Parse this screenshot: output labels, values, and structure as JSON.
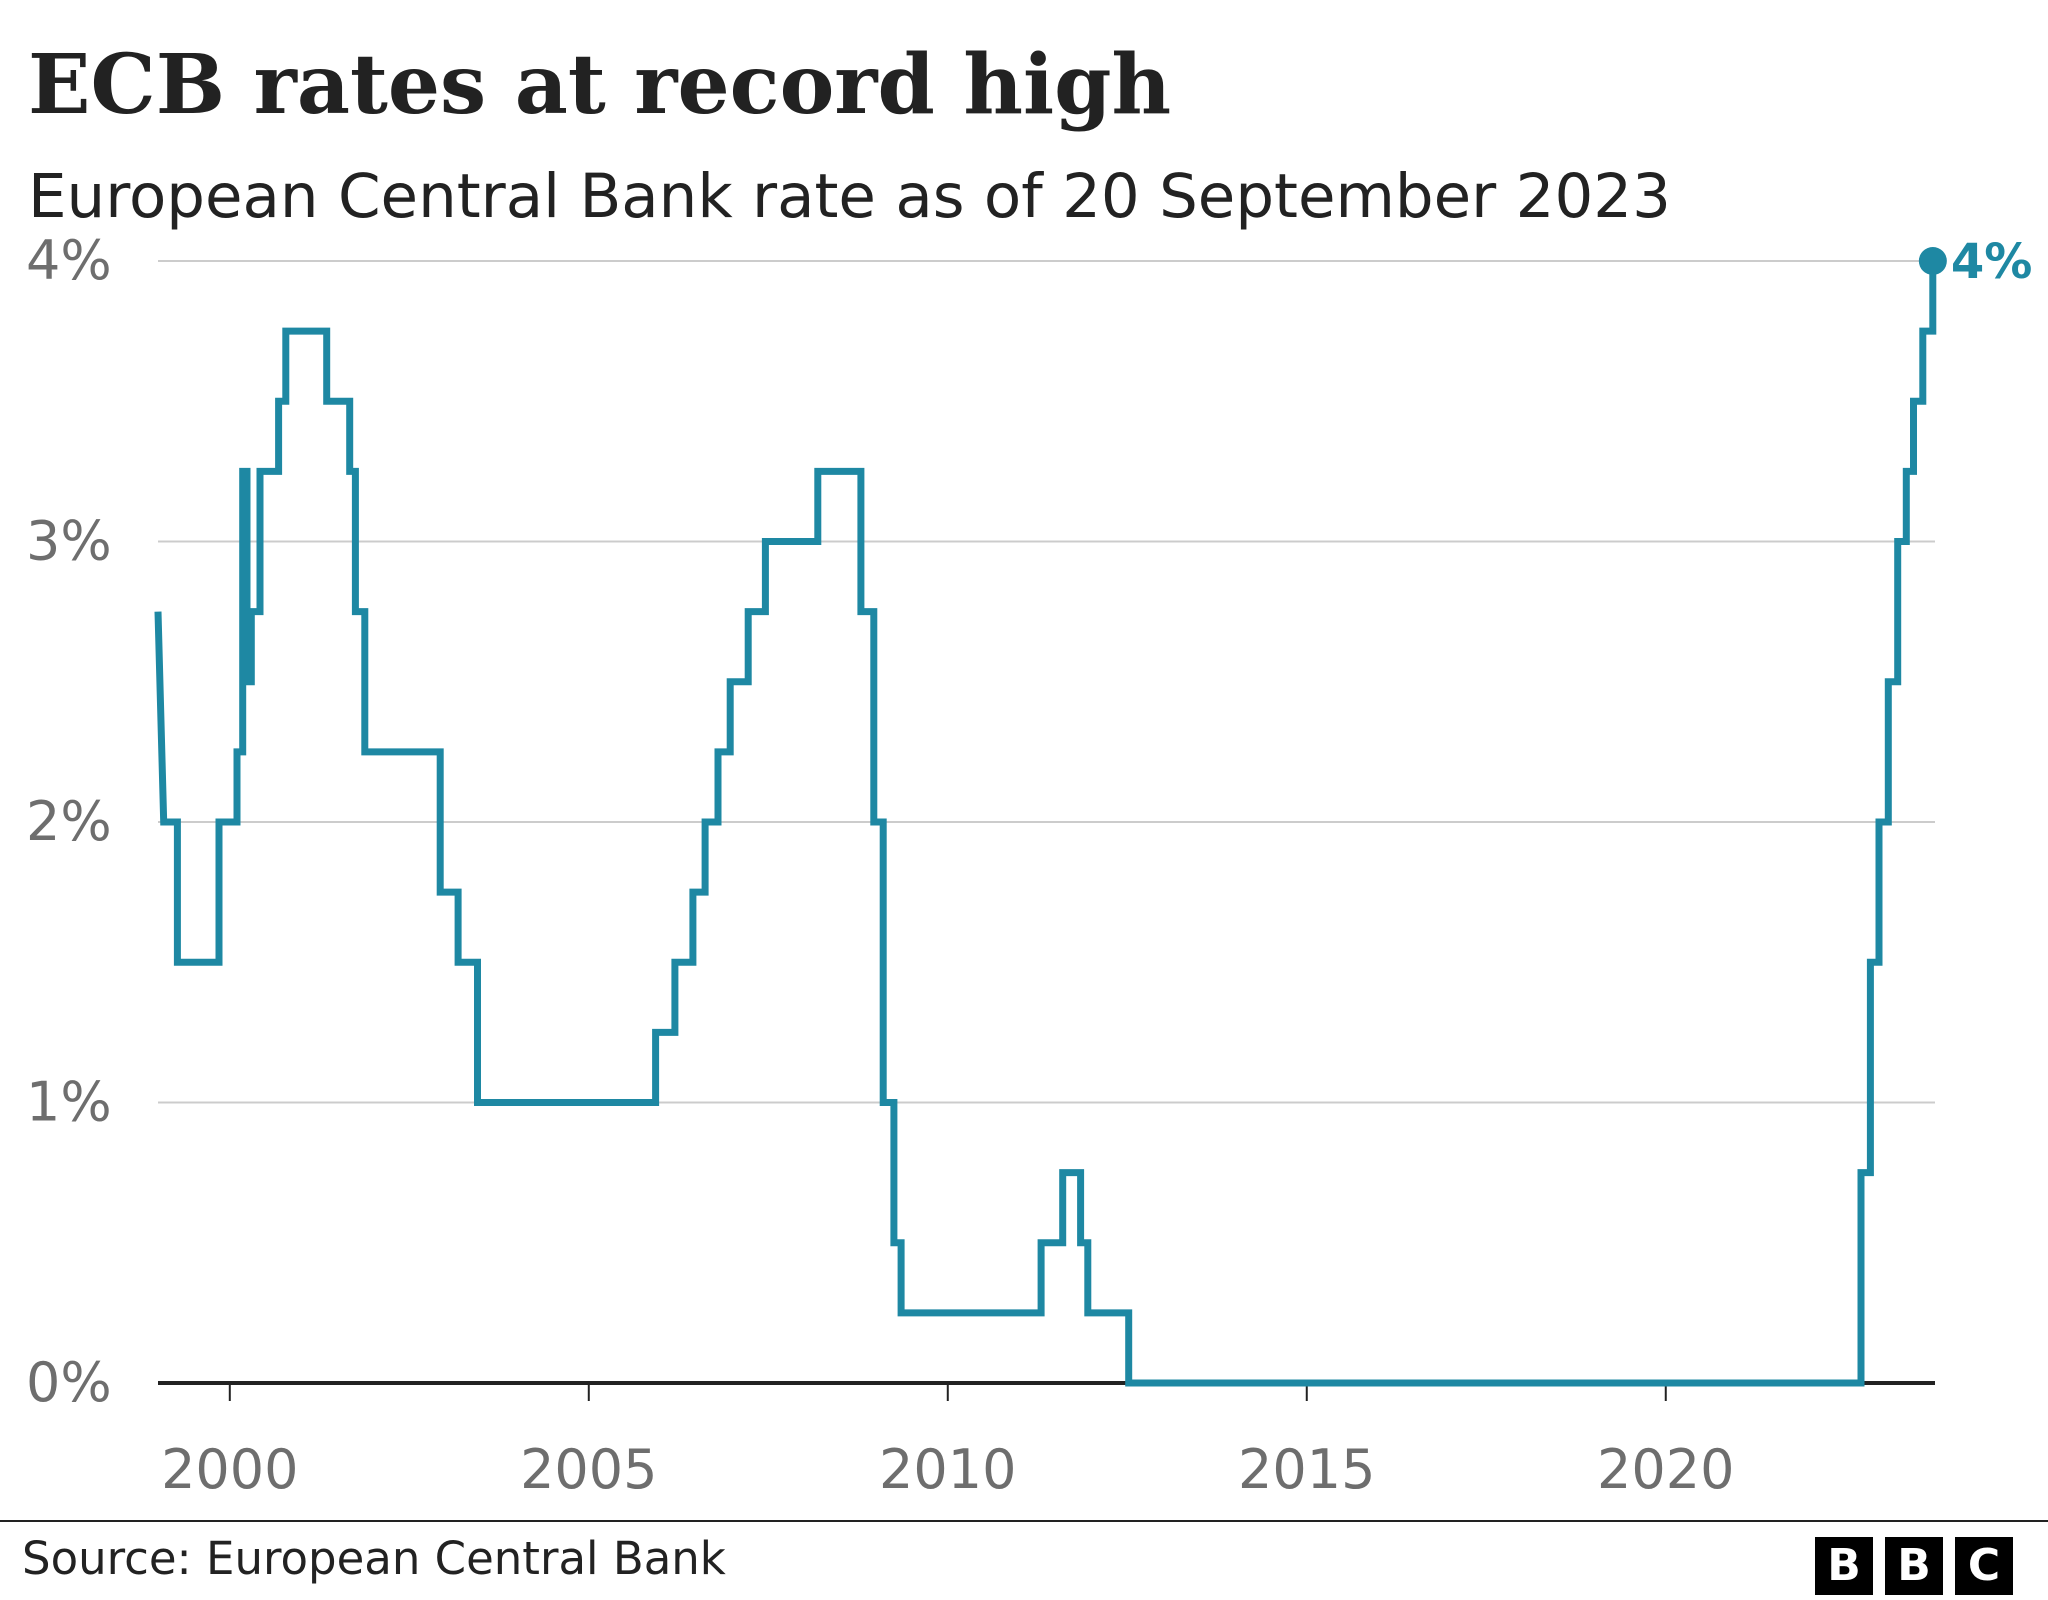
{
  "header": {
    "title": "ECB rates at record high",
    "subtitle": "European Central Bank rate as of 20 September 2023"
  },
  "footer": {
    "source": "Source: European Central Bank",
    "logo_letters": [
      "B",
      "B",
      "C"
    ]
  },
  "colors": {
    "series": "#1e88a3",
    "gridline": "#cccccc",
    "baseline": "#222222",
    "tick_text": "#6e6e6e",
    "logo_bg": "#000000"
  },
  "chart_data": {
    "type": "line",
    "step": true,
    "title": "ECB rates at record high",
    "subtitle": "European Central Bank rate as of 20 September 2023",
    "xlabel": "",
    "ylabel": "",
    "xlim": [
      1999.0,
      2023.75
    ],
    "ylim": [
      0,
      4
    ],
    "x_ticks": [
      2000,
      2005,
      2010,
      2015,
      2020
    ],
    "x_tick_labels": [
      "2000",
      "2005",
      "2010",
      "2015",
      "2020"
    ],
    "y_ticks": [
      0,
      1,
      2,
      3,
      4
    ],
    "y_tick_labels": [
      "0%",
      "1%",
      "2%",
      "3%",
      "4%"
    ],
    "grid": true,
    "end_label": "4%",
    "series": [
      {
        "points": [
          [
            1999.0,
            2.75
          ],
          [
            1999.08,
            2.0
          ],
          [
            1999.27,
            2.0
          ],
          [
            1999.27,
            1.5
          ],
          [
            1999.85,
            1.5
          ],
          [
            1999.85,
            2.0
          ],
          [
            2000.1,
            2.0
          ],
          [
            2000.1,
            2.25
          ],
          [
            2000.18,
            2.25
          ],
          [
            2000.18,
            3.25
          ],
          [
            2000.24,
            3.25
          ],
          [
            2000.24,
            2.5
          ],
          [
            2000.3,
            2.5
          ],
          [
            2000.3,
            2.75
          ],
          [
            2000.42,
            2.75
          ],
          [
            2000.42,
            3.25
          ],
          [
            2000.68,
            3.25
          ],
          [
            2000.68,
            3.5
          ],
          [
            2000.78,
            3.5
          ],
          [
            2000.78,
            3.75
          ],
          [
            2001.35,
            3.75
          ],
          [
            2001.35,
            3.5
          ],
          [
            2001.67,
            3.5
          ],
          [
            2001.67,
            3.25
          ],
          [
            2001.75,
            3.25
          ],
          [
            2001.75,
            2.75
          ],
          [
            2001.88,
            2.75
          ],
          [
            2001.88,
            2.25
          ],
          [
            2002.93,
            2.25
          ],
          [
            2002.93,
            1.75
          ],
          [
            2003.18,
            1.75
          ],
          [
            2003.18,
            1.5
          ],
          [
            2003.45,
            1.5
          ],
          [
            2003.45,
            1.0
          ],
          [
            2005.93,
            1.0
          ],
          [
            2005.93,
            1.25
          ],
          [
            2006.2,
            1.25
          ],
          [
            2006.2,
            1.5
          ],
          [
            2006.45,
            1.5
          ],
          [
            2006.45,
            1.75
          ],
          [
            2006.62,
            1.75
          ],
          [
            2006.62,
            2.0
          ],
          [
            2006.8,
            2.0
          ],
          [
            2006.8,
            2.25
          ],
          [
            2006.97,
            2.25
          ],
          [
            2006.97,
            2.5
          ],
          [
            2007.22,
            2.5
          ],
          [
            2007.22,
            2.75
          ],
          [
            2007.46,
            2.75
          ],
          [
            2007.46,
            3.0
          ],
          [
            2008.19,
            3.0
          ],
          [
            2008.19,
            3.25
          ],
          [
            2008.79,
            3.25
          ],
          [
            2008.79,
            2.75
          ],
          [
            2008.97,
            2.75
          ],
          [
            2008.97,
            2.0
          ],
          [
            2009.1,
            2.0
          ],
          [
            2009.1,
            1.0
          ],
          [
            2009.25,
            1.0
          ],
          [
            2009.25,
            0.5
          ],
          [
            2009.35,
            0.5
          ],
          [
            2009.35,
            0.25
          ],
          [
            2011.3,
            0.25
          ],
          [
            2011.3,
            0.5
          ],
          [
            2011.6,
            0.5
          ],
          [
            2011.6,
            0.75
          ],
          [
            2011.85,
            0.75
          ],
          [
            2011.85,
            0.5
          ],
          [
            2011.95,
            0.5
          ],
          [
            2011.95,
            0.25
          ],
          [
            2012.52,
            0.25
          ],
          [
            2012.52,
            0.0
          ],
          [
            2022.72,
            0.0
          ],
          [
            2022.72,
            0.75
          ],
          [
            2022.85,
            0.75
          ],
          [
            2022.85,
            1.5
          ],
          [
            2022.97,
            1.5
          ],
          [
            2022.97,
            2.0
          ],
          [
            2023.1,
            2.0
          ],
          [
            2023.1,
            2.5
          ],
          [
            2023.23,
            2.5
          ],
          [
            2023.23,
            3.0
          ],
          [
            2023.35,
            3.0
          ],
          [
            2023.35,
            3.25
          ],
          [
            2023.45,
            3.25
          ],
          [
            2023.45,
            3.5
          ],
          [
            2023.58,
            3.5
          ],
          [
            2023.58,
            3.75
          ],
          [
            2023.72,
            3.75
          ],
          [
            2023.72,
            4.0
          ]
        ]
      }
    ]
  }
}
